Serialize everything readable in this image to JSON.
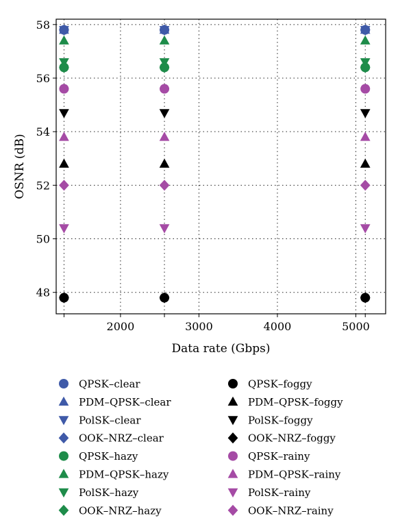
{
  "chart_data": {
    "type": "scatter",
    "title": "",
    "xlabel": "Data rate (Gbps)",
    "ylabel": "OSNR (dB)",
    "xlim": [
      1180,
      5380
    ],
    "ylim": [
      47.2,
      58.2
    ],
    "xticks": [
      2000,
      3000,
      4000,
      5000
    ],
    "yticks": [
      48,
      50,
      52,
      54,
      56,
      58
    ],
    "grid": true,
    "grid_style": "dotted",
    "legend_position": "below",
    "x_values": [
      1280,
      2560,
      5120
    ],
    "series": [
      {
        "name": "QPSK–clear",
        "marker": "circle",
        "color": "#3f5aa8",
        "x": [
          1280,
          2560,
          5120
        ],
        "y": [
          57.8,
          57.8,
          57.8
        ]
      },
      {
        "name": "PDM–QPSK–clear",
        "marker": "triangle-up",
        "color": "#3f5aa8",
        "x": [
          1280,
          2560,
          5120
        ],
        "y": [
          57.8,
          57.8,
          57.8
        ]
      },
      {
        "name": "PolSK–clear",
        "marker": "triangle-down",
        "color": "#3f5aa8",
        "x": [
          1280,
          2560,
          5120
        ],
        "y": [
          57.8,
          57.8,
          57.8
        ]
      },
      {
        "name": "OOK–NRZ–clear",
        "marker": "diamond",
        "color": "#3f5aa8",
        "x": [
          1280,
          2560,
          5120
        ],
        "y": [
          57.8,
          57.8,
          57.8
        ]
      },
      {
        "name": "QPSK–hazy",
        "marker": "circle",
        "color": "#1e8c4a",
        "x": [
          1280,
          2560,
          5120
        ],
        "y": [
          56.4,
          56.4,
          56.4
        ]
      },
      {
        "name": "PDM–QPSK–hazy",
        "marker": "triangle-up",
        "color": "#1e8c4a",
        "x": [
          1280,
          2560,
          5120
        ],
        "y": [
          57.4,
          57.4,
          57.4
        ]
      },
      {
        "name": "PolSK–hazy",
        "marker": "triangle-down",
        "color": "#1e8c4a",
        "x": [
          1280,
          2560,
          5120
        ],
        "y": [
          56.6,
          56.6,
          56.6
        ]
      },
      {
        "name": "OOK–NRZ–hazy",
        "marker": "diamond",
        "color": "#1e8c4a",
        "x": [
          1280,
          2560,
          5120
        ],
        "y": [
          56.4,
          56.4,
          56.4
        ]
      },
      {
        "name": "QPSK–foggy",
        "marker": "circle",
        "color": "#000000",
        "x": [
          1280,
          2560,
          5120
        ],
        "y": [
          47.8,
          47.8,
          47.8
        ]
      },
      {
        "name": "PDM–QPSK–foggy",
        "marker": "triangle-up",
        "color": "#000000",
        "x": [
          1280,
          2560,
          5120
        ],
        "y": [
          52.8,
          52.8,
          52.8
        ]
      },
      {
        "name": "PolSK–foggy",
        "marker": "triangle-down",
        "color": "#000000",
        "x": [
          1280,
          2560,
          5120
        ],
        "y": [
          54.7,
          54.7,
          54.7
        ]
      },
      {
        "name": "OOK–NRZ–foggy",
        "marker": "diamond",
        "color": "#000000",
        "x": [
          1280,
          2560,
          5120
        ],
        "y": [
          47.8,
          47.8,
          47.8
        ]
      },
      {
        "name": "QPSK–rainy",
        "marker": "circle",
        "color": "#a54ba5",
        "x": [
          1280,
          2560,
          5120
        ],
        "y": [
          55.6,
          55.6,
          55.6
        ]
      },
      {
        "name": "PDM–QPSK–rainy",
        "marker": "triangle-up",
        "color": "#a54ba5",
        "x": [
          1280,
          2560,
          5120
        ],
        "y": [
          53.8,
          53.8,
          53.8
        ]
      },
      {
        "name": "PolSK–rainy",
        "marker": "triangle-down",
        "color": "#a54ba5",
        "x": [
          1280,
          2560,
          5120
        ],
        "y": [
          50.4,
          50.4,
          50.4
        ]
      },
      {
        "name": "OOK–NRZ–rainy",
        "marker": "diamond",
        "color": "#a54ba5",
        "x": [
          1280,
          2560,
          5120
        ],
        "y": [
          52.0,
          52.0,
          52.0
        ]
      }
    ]
  }
}
